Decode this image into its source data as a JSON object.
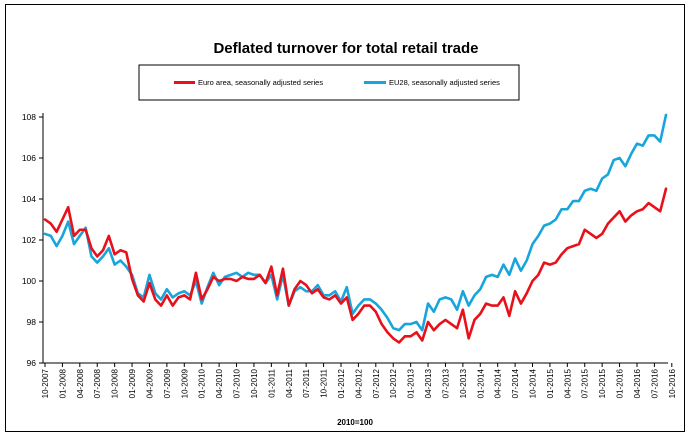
{
  "chart_data": {
    "type": "line",
    "title": "Deflated turnover for total retail trade",
    "xlabel": "2010=100",
    "ylabel": "",
    "ylim": [
      96,
      108
    ],
    "yticks": [
      96,
      98,
      100,
      102,
      104,
      106,
      108
    ],
    "grid": false,
    "legend_position": "top",
    "x_tick_labels": [
      "10-2007",
      "01-2008",
      "04-2008",
      "07-2008",
      "10-2008",
      "01-2009",
      "04-2009",
      "07-2009",
      "10-2009",
      "01-2010",
      "04-2010",
      "07-2010",
      "10-2010",
      "01-2011",
      "04-2011",
      "07-2011",
      "10-2011",
      "01-2012",
      "04-2012",
      "07-2012",
      "10-2012",
      "01-2013",
      "04-2013",
      "07-2013",
      "10-2013",
      "01-2014",
      "04-2014",
      "07-2014",
      "10-2014",
      "01-2015",
      "04-2015",
      "07-2015",
      "10-2015",
      "01-2016",
      "04-2016",
      "07-2016",
      "10-2016"
    ],
    "series": [
      {
        "name": "Euro area, seasonally adjusted series",
        "color": "#e8111b",
        "values": [
          103.0,
          102.8,
          102.4,
          103.0,
          103.6,
          102.2,
          102.5,
          102.5,
          101.6,
          101.2,
          101.5,
          102.2,
          101.3,
          101.5,
          101.4,
          100.1,
          99.3,
          99.0,
          99.9,
          99.1,
          98.8,
          99.3,
          98.8,
          99.2,
          99.3,
          99.1,
          100.4,
          99.1,
          99.6,
          100.2,
          100.0,
          100.1,
          100.1,
          100.0,
          100.2,
          100.1,
          100.1,
          100.3,
          99.9,
          100.7,
          99.3,
          100.6,
          98.8,
          99.6,
          100.0,
          99.8,
          99.4,
          99.6,
          99.2,
          99.1,
          99.3,
          98.9,
          99.2,
          98.1,
          98.4,
          98.8,
          98.8,
          98.5,
          97.9,
          97.5,
          97.2,
          97.0,
          97.3,
          97.3,
          97.5,
          97.1,
          98.0,
          97.6,
          97.9,
          98.1,
          97.9,
          97.7,
          98.6,
          97.2,
          98.1,
          98.4,
          98.9,
          98.8,
          98.8,
          99.2,
          98.3,
          99.5,
          98.9,
          99.4,
          100.0,
          100.3,
          100.9,
          100.8,
          100.9,
          101.3,
          101.6,
          101.7,
          101.8,
          102.5,
          102.3,
          102.1,
          102.3,
          102.8,
          103.1,
          103.4,
          102.9,
          103.2,
          103.4,
          103.5,
          103.8,
          103.6,
          103.4,
          104.5
        ]
      },
      {
        "name": "EU28, seasonally adjusted series",
        "color": "#18a5dc",
        "values": [
          102.3,
          102.2,
          101.7,
          102.2,
          102.9,
          101.8,
          102.2,
          102.6,
          101.2,
          100.9,
          101.2,
          101.6,
          100.8,
          101.0,
          100.7,
          100.3,
          99.4,
          99.2,
          100.3,
          99.4,
          99.1,
          99.6,
          99.2,
          99.4,
          99.5,
          99.3,
          100.0,
          98.9,
          99.7,
          100.4,
          99.8,
          100.2,
          100.3,
          100.4,
          100.2,
          100.4,
          100.3,
          100.3,
          99.9,
          100.3,
          99.1,
          100.3,
          98.8,
          99.5,
          99.7,
          99.5,
          99.5,
          99.8,
          99.3,
          99.3,
          99.5,
          99.0,
          99.7,
          98.4,
          98.8,
          99.1,
          99.1,
          98.9,
          98.6,
          98.2,
          97.7,
          97.6,
          97.9,
          97.9,
          98.0,
          97.6,
          98.9,
          98.5,
          99.1,
          99.2,
          99.1,
          98.6,
          99.5,
          98.8,
          99.3,
          99.6,
          100.2,
          100.3,
          100.2,
          100.8,
          100.3,
          101.1,
          100.5,
          101.0,
          101.8,
          102.2,
          102.7,
          102.8,
          103.0,
          103.5,
          103.5,
          103.9,
          103.9,
          104.4,
          104.5,
          104.4,
          105.0,
          105.2,
          105.9,
          106.0,
          105.6,
          106.2,
          106.7,
          106.6,
          107.1,
          107.1,
          106.8,
          108.1
        ]
      }
    ]
  }
}
